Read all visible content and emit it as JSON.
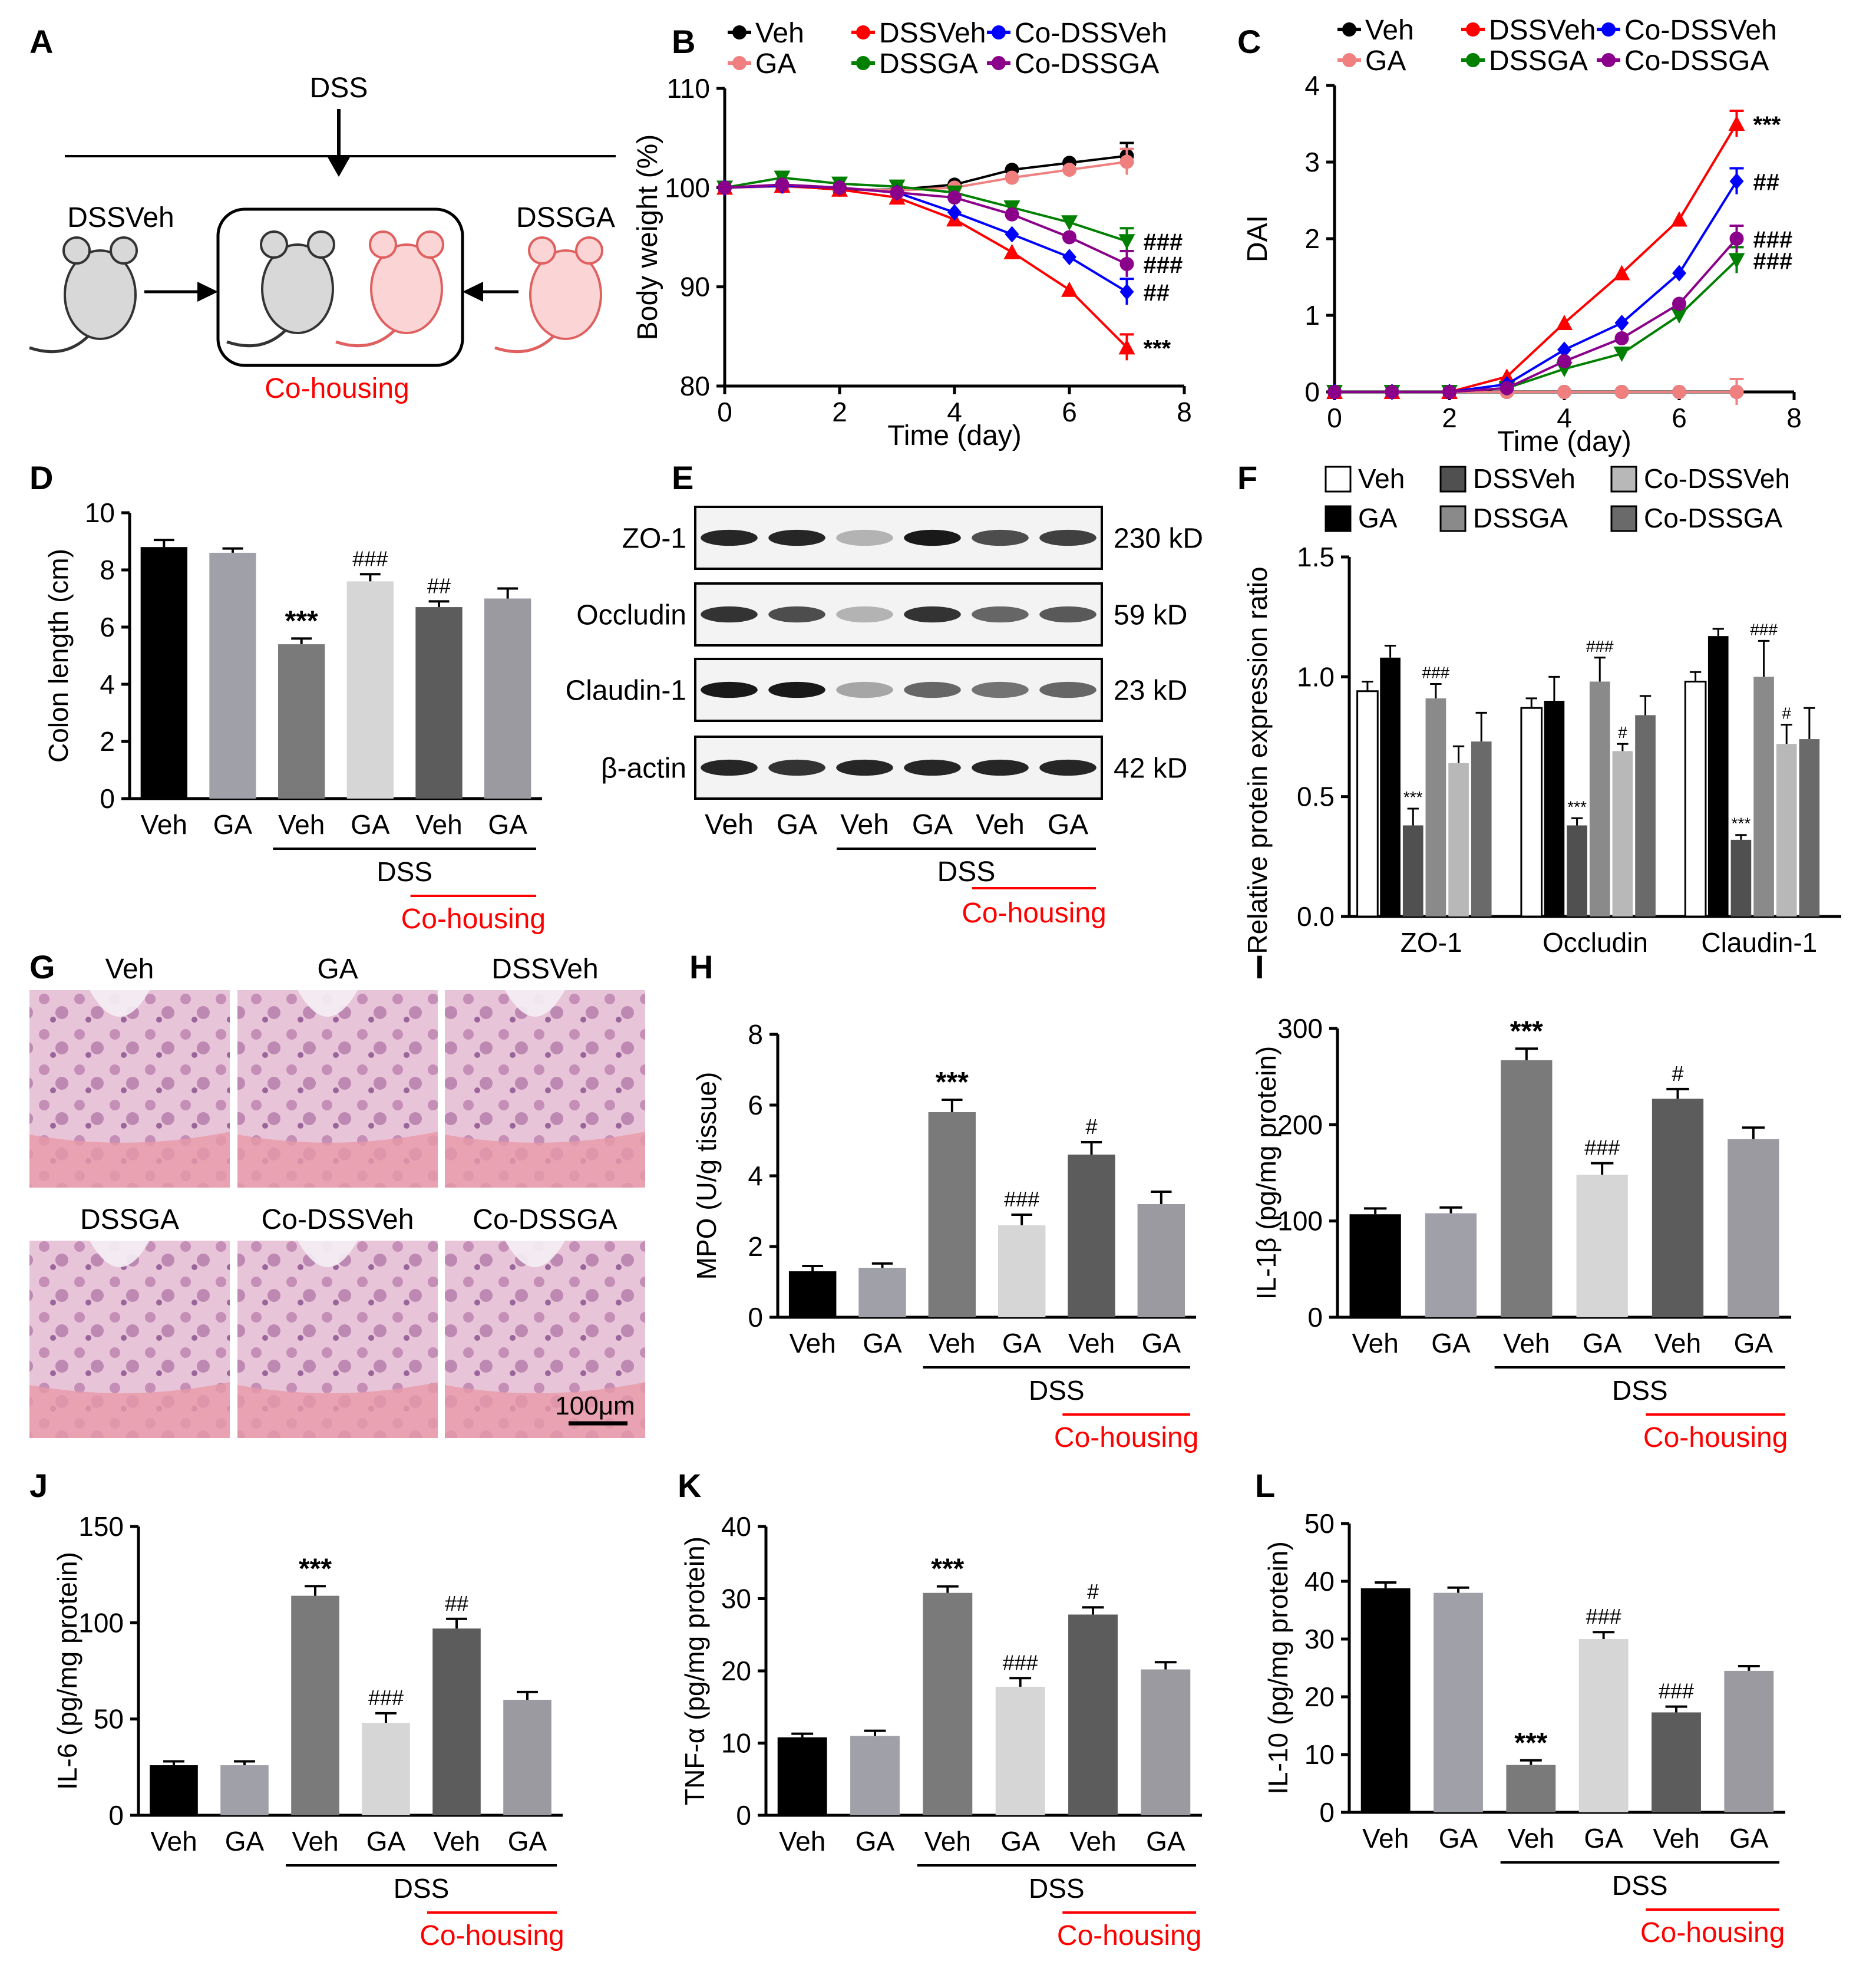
{
  "palette": {
    "black": "#000000",
    "red": "#ff0000",
    "blue": "#0000ff",
    "green": "#008000",
    "pink": "#f08080",
    "purple": "#8b008b",
    "bar_black": "#000000",
    "bar_gray": "#a0a0a8",
    "bar_dark": "#7a7a7a",
    "bar_light": "#d6d6d6",
    "bar_darker": "#5c5c5c",
    "bar_mid": "#9a9aa0"
  },
  "panel_letters": [
    "A",
    "B",
    "C",
    "D",
    "E",
    "F",
    "G",
    "H",
    "I",
    "J",
    "K",
    "L"
  ],
  "panelA": {
    "dss": "DSS",
    "left": "DSSVeh",
    "right": "DSSGA",
    "cohousing": "Co-housing"
  },
  "chart_data": [
    {
      "id": "B",
      "type": "line",
      "ylabel": "Body weight (%)",
      "xlabel": "Time (day)",
      "xlim": [
        0,
        8
      ],
      "ylim": [
        80,
        110
      ],
      "xticks": [
        "0",
        "2",
        "4",
        "6",
        "8"
      ],
      "yticks": [
        "80",
        "90",
        "100",
        "110"
      ],
      "x": [
        0,
        1,
        2,
        3,
        4,
        5,
        6,
        7
      ],
      "series": [
        {
          "name": "Veh",
          "color": "#000000",
          "marker": "circle",
          "values": [
            100,
            100.2,
            99.8,
            99.8,
            100.3,
            101.8,
            102.5,
            103.2
          ]
        },
        {
          "name": "GA",
          "color": "#f08080",
          "marker": "circle",
          "values": [
            100,
            100.1,
            99.9,
            99.7,
            100.0,
            101.0,
            101.8,
            102.6
          ]
        },
        {
          "name": "DSSVeh",
          "color": "#ff0000",
          "marker": "triangle-up",
          "values": [
            100,
            100.2,
            99.8,
            99.0,
            96.8,
            93.5,
            89.7,
            83.9
          ]
        },
        {
          "name": "DSSGA",
          "color": "#008000",
          "marker": "triangle-down",
          "values": [
            100,
            101.0,
            100.4,
            100.1,
            99.5,
            98.0,
            96.5,
            94.6
          ]
        },
        {
          "name": "Co-DSSVeh",
          "color": "#0000ff",
          "marker": "diamond",
          "values": [
            100,
            100.2,
            100.0,
            99.5,
            97.5,
            95.3,
            93.0,
            89.5
          ]
        },
        {
          "name": "Co-DSSGA",
          "color": "#8b008b",
          "marker": "circle",
          "values": [
            100,
            100.3,
            100.0,
            99.5,
            99.0,
            97.3,
            95.0,
            92.3
          ]
        }
      ],
      "annotations": [
        {
          "series": "DSSGA",
          "text": "###"
        },
        {
          "series": "Co-DSSGA",
          "text": "###"
        },
        {
          "series": "Co-DSSVeh",
          "text": "##"
        },
        {
          "series": "DSSVeh",
          "text": "***"
        }
      ]
    },
    {
      "id": "C",
      "type": "line",
      "ylabel": "DAI",
      "xlabel": "Time (day)",
      "xlim": [
        0,
        8
      ],
      "ylim": [
        0,
        4
      ],
      "xticks": [
        "0",
        "2",
        "4",
        "6",
        "8"
      ],
      "yticks": [
        "0",
        "1",
        "2",
        "3",
        "4"
      ],
      "x": [
        0,
        1,
        2,
        3,
        4,
        5,
        6,
        7
      ],
      "series": [
        {
          "name": "Veh",
          "color": "#000000",
          "marker": "circle",
          "values": [
            0,
            0,
            0,
            0,
            0,
            0,
            0,
            0
          ]
        },
        {
          "name": "GA",
          "color": "#f08080",
          "marker": "circle",
          "values": [
            0,
            0,
            0,
            0,
            0,
            0,
            0,
            0
          ]
        },
        {
          "name": "DSSVeh",
          "color": "#ff0000",
          "marker": "triangle-up",
          "values": [
            0,
            0,
            0,
            0.2,
            0.9,
            1.55,
            2.25,
            3.5
          ]
        },
        {
          "name": "DSSGA",
          "color": "#008000",
          "marker": "triangle-down",
          "values": [
            0,
            0,
            0,
            0.05,
            0.3,
            0.5,
            1.0,
            1.72
          ]
        },
        {
          "name": "Co-DSSVeh",
          "color": "#0000ff",
          "marker": "diamond",
          "values": [
            0,
            0,
            0,
            0.1,
            0.55,
            0.9,
            1.55,
            2.75
          ]
        },
        {
          "name": "Co-DSSGA",
          "color": "#8b008b",
          "marker": "circle",
          "values": [
            0,
            0,
            0,
            0.05,
            0.4,
            0.7,
            1.15,
            2.0
          ]
        }
      ],
      "annotations": [
        {
          "series": "DSSVeh",
          "text": "***"
        },
        {
          "series": "Co-DSSVeh",
          "text": "##"
        },
        {
          "series": "Co-DSSGA",
          "text": "###"
        },
        {
          "series": "DSSGA",
          "text": "###"
        }
      ]
    },
    {
      "id": "D",
      "type": "bar",
      "ylabel": "Colon length (cm)",
      "ylim": [
        0,
        10
      ],
      "yticks": [
        "0",
        "2",
        "4",
        "6",
        "8",
        "10"
      ],
      "categories": [
        "Veh",
        "GA",
        "Veh",
        "GA",
        "Veh",
        "GA"
      ],
      "values": [
        8.8,
        8.6,
        5.4,
        7.6,
        6.7,
        7.0
      ],
      "errors": [
        0.25,
        0.15,
        0.2,
        0.25,
        0.2,
        0.35
      ],
      "colors": [
        "#000000",
        "#a0a0a8",
        "#7a7a7a",
        "#d6d6d6",
        "#5c5c5c",
        "#9a9aa0"
      ],
      "sig": [
        "",
        "",
        "***",
        "###",
        "##",
        ""
      ],
      "group_label": "DSS",
      "cohousing_label": "Co-housing"
    },
    {
      "id": "F",
      "type": "bar",
      "ylabel": "Relative protein expression ratio",
      "ylim": [
        0,
        1.5
      ],
      "yticks": [
        "0.0",
        "0.5",
        "1.0",
        "1.5"
      ],
      "categories": [
        "ZO-1",
        "Occludin",
        "Claudin-1"
      ],
      "series": [
        {
          "name": "Veh",
          "color": "#ffffff",
          "values": [
            0.94,
            0.87,
            0.98
          ],
          "errors": [
            0.04,
            0.04,
            0.04
          ]
        },
        {
          "name": "GA",
          "color": "#000000",
          "values": [
            1.08,
            0.9,
            1.17
          ],
          "errors": [
            0.05,
            0.1,
            0.03
          ]
        },
        {
          "name": "DSSVeh",
          "color": "#505050",
          "values": [
            0.38,
            0.38,
            0.32
          ],
          "errors": [
            0.07,
            0.03,
            0.02
          ]
        },
        {
          "name": "DSSGA",
          "color": "#8a8a8a",
          "values": [
            0.91,
            0.98,
            1.0
          ],
          "errors": [
            0.06,
            0.1,
            0.15
          ]
        },
        {
          "name": "Co-DSSVeh",
          "color": "#b8b8b8",
          "values": [
            0.64,
            0.69,
            0.72
          ],
          "errors": [
            0.07,
            0.03,
            0.08
          ]
        },
        {
          "name": "Co-DSSGA",
          "color": "#6a6a6a",
          "values": [
            0.73,
            0.84,
            0.74
          ],
          "errors": [
            0.12,
            0.08,
            0.13
          ]
        }
      ],
      "sig": [
        [
          "",
          "",
          "***",
          "###",
          "",
          ""
        ],
        [
          "",
          "",
          "***",
          "###",
          "#",
          ""
        ],
        [
          "",
          "",
          "***",
          "###",
          "#",
          ""
        ]
      ]
    },
    {
      "id": "H",
      "type": "bar",
      "ylabel": "MPO (U/g tissue)",
      "ylim": [
        0,
        8
      ],
      "yticks": [
        "0",
        "2",
        "4",
        "6",
        "8"
      ],
      "categories": [
        "Veh",
        "GA",
        "Veh",
        "GA",
        "Veh",
        "GA"
      ],
      "values": [
        1.3,
        1.4,
        5.8,
        2.6,
        4.6,
        3.2
      ],
      "errors": [
        0.15,
        0.12,
        0.35,
        0.3,
        0.35,
        0.35
      ],
      "colors": [
        "#000000",
        "#a0a0a8",
        "#7a7a7a",
        "#d6d6d6",
        "#5c5c5c",
        "#9a9aa0"
      ],
      "sig": [
        "",
        "",
        "***",
        "###",
        "#",
        ""
      ],
      "group_label": "DSS",
      "cohousing_label": "Co-housing"
    },
    {
      "id": "I",
      "type": "bar",
      "ylabel": "IL-1β (pg/mg protein)",
      "ylim": [
        0,
        300
      ],
      "yticks": [
        "0",
        "100",
        "200",
        "300"
      ],
      "categories": [
        "Veh",
        "GA",
        "Veh",
        "GA",
        "Veh",
        "GA"
      ],
      "values": [
        107,
        108,
        267,
        148,
        227,
        185
      ],
      "errors": [
        6,
        6,
        12,
        12,
        10,
        12
      ],
      "colors": [
        "#000000",
        "#a0a0a8",
        "#7a7a7a",
        "#d6d6d6",
        "#5c5c5c",
        "#9a9aa0"
      ],
      "sig": [
        "",
        "",
        "***",
        "###",
        "#",
        ""
      ],
      "group_label": "DSS",
      "cohousing_label": "Co-housing"
    },
    {
      "id": "J",
      "type": "bar",
      "ylabel": "IL-6 (pg/mg protein)",
      "ylim": [
        0,
        150
      ],
      "yticks": [
        "0",
        "50",
        "100",
        "150"
      ],
      "categories": [
        "Veh",
        "GA",
        "Veh",
        "GA",
        "Veh",
        "GA"
      ],
      "values": [
        26,
        26,
        114,
        48,
        97,
        60
      ],
      "errors": [
        2,
        2,
        5,
        5,
        5,
        4
      ],
      "colors": [
        "#000000",
        "#a0a0a8",
        "#7a7a7a",
        "#d6d6d6",
        "#5c5c5c",
        "#9a9aa0"
      ],
      "sig": [
        "",
        "",
        "***",
        "###",
        "##",
        ""
      ],
      "group_label": "DSS",
      "cohousing_label": "Co-housing"
    },
    {
      "id": "K",
      "type": "bar",
      "ylabel": "TNF-α (pg/mg protein)",
      "ylim": [
        0,
        40
      ],
      "yticks": [
        "0",
        "10",
        "20",
        "30",
        "40"
      ],
      "categories": [
        "Veh",
        "GA",
        "Veh",
        "GA",
        "Veh",
        "GA"
      ],
      "values": [
        10.8,
        11.0,
        30.8,
        17.8,
        27.8,
        20.2
      ],
      "errors": [
        0.5,
        0.7,
        0.9,
        1.2,
        1.0,
        1.0
      ],
      "colors": [
        "#000000",
        "#a0a0a8",
        "#7a7a7a",
        "#d6d6d6",
        "#5c5c5c",
        "#9a9aa0"
      ],
      "sig": [
        "",
        "",
        "***",
        "###",
        "#",
        ""
      ],
      "group_label": "DSS",
      "cohousing_label": "Co-housing"
    },
    {
      "id": "L",
      "type": "bar",
      "ylabel": "IL-10 (pg/mg protein)",
      "ylim": [
        0,
        50
      ],
      "yticks": [
        "0",
        "10",
        "20",
        "30",
        "40",
        "50"
      ],
      "categories": [
        "Veh",
        "GA",
        "Veh",
        "GA",
        "Veh",
        "GA"
      ],
      "values": [
        38.8,
        38.0,
        8.2,
        30.0,
        17.3,
        24.5
      ],
      "errors": [
        1.0,
        0.9,
        0.8,
        1.2,
        1.0,
        0.8
      ],
      "colors": [
        "#000000",
        "#a0a0a8",
        "#7a7a7a",
        "#d6d6d6",
        "#5c5c5c",
        "#9a9aa0"
      ],
      "sig": [
        "",
        "",
        "***",
        "###",
        "###",
        ""
      ],
      "group_label": "DSS",
      "cohousing_label": "Co-housing"
    }
  ],
  "panelE": {
    "rows": [
      {
        "label": "ZO-1",
        "size": "230 kD",
        "intensity": [
          0.85,
          0.85,
          0.3,
          0.9,
          0.7,
          0.75
        ]
      },
      {
        "label": "Occludin",
        "size": "59 kD",
        "intensity": [
          0.8,
          0.7,
          0.3,
          0.8,
          0.6,
          0.65
        ]
      },
      {
        "label": "Claudin-1",
        "size": "23 kD",
        "intensity": [
          0.9,
          0.9,
          0.35,
          0.6,
          0.55,
          0.6
        ]
      },
      {
        "label": "β-actin",
        "size": "42 kD",
        "intensity": [
          0.85,
          0.8,
          0.85,
          0.85,
          0.85,
          0.85
        ]
      }
    ],
    "lanes": [
      "Veh",
      "GA",
      "Veh",
      "GA",
      "Veh",
      "GA"
    ],
    "group_label": "DSS",
    "cohousing_label": "Co-housing"
  },
  "panelG": {
    "labels": [
      "Veh",
      "GA",
      "DSSVeh",
      "DSSGA",
      "Co-DSSVeh",
      "Co-DSSGA"
    ],
    "scalebar": "100μm"
  }
}
